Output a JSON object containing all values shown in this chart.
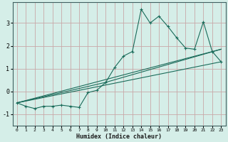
{
  "xlabel": "Humidex (Indice chaleur)",
  "bg_color": "#d5eee8",
  "line_color": "#1a6b5a",
  "grid_color": "#c8a8a8",
  "xlim": [
    -0.5,
    23.5
  ],
  "ylim": [
    -1.5,
    3.9
  ],
  "xticks": [
    0,
    1,
    2,
    3,
    4,
    5,
    6,
    7,
    8,
    9,
    10,
    11,
    12,
    13,
    14,
    15,
    16,
    17,
    18,
    19,
    20,
    21,
    22,
    23
  ],
  "yticks": [
    -1,
    0,
    1,
    2,
    3
  ],
  "line1_x": [
    0,
    1,
    2,
    3,
    4,
    5,
    6,
    7,
    8,
    9,
    10,
    11,
    12,
    13,
    14,
    15,
    16,
    17,
    18,
    19,
    20,
    21,
    22,
    23
  ],
  "line1_y": [
    -0.5,
    -0.65,
    -0.75,
    -0.65,
    -0.65,
    -0.6,
    -0.65,
    -0.7,
    -0.05,
    0.05,
    0.4,
    1.05,
    1.55,
    1.75,
    3.6,
    3.0,
    3.3,
    2.85,
    2.35,
    1.9,
    1.85,
    3.05,
    1.75,
    1.3
  ],
  "line2_x": [
    0,
    23
  ],
  "line2_y": [
    -0.5,
    1.3
  ],
  "line3_x": [
    0,
    23
  ],
  "line3_y": [
    -0.5,
    1.85
  ],
  "line4_x": [
    0,
    10,
    23
  ],
  "line4_y": [
    -0.5,
    0.4,
    1.85
  ]
}
